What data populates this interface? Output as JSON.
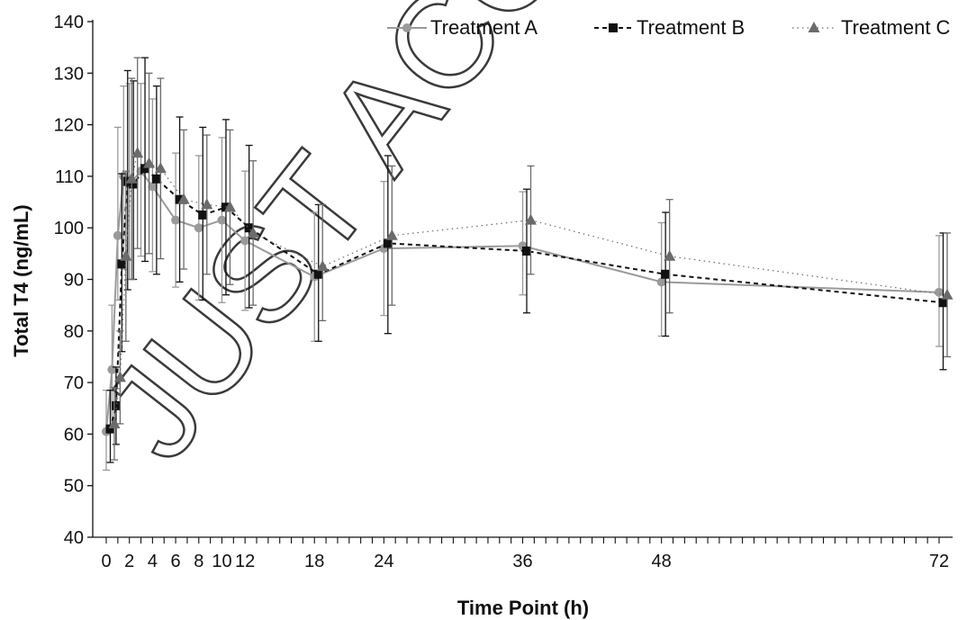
{
  "watermark": "JUST ACCEPTED",
  "chart_data": {
    "type": "line",
    "xlabel": "Time Point (h)",
    "ylabel": "Total T4 (ng/mL)",
    "xlim": [
      -1,
      73
    ],
    "ylim": [
      40,
      140
    ],
    "x_tick_values": [
      0,
      1,
      2,
      3,
      4,
      5,
      6,
      7,
      8,
      9,
      10,
      11,
      12,
      13,
      14,
      15,
      16,
      17,
      18,
      19,
      20,
      21,
      22,
      23,
      24,
      25,
      26,
      27,
      28,
      29,
      30,
      31,
      32,
      33,
      34,
      35,
      36,
      37,
      38,
      39,
      40,
      41,
      42,
      43,
      44,
      45,
      46,
      47,
      48,
      49,
      50,
      51,
      52,
      53,
      54,
      55,
      56,
      57,
      58,
      59,
      60,
      61,
      62,
      63,
      64,
      65,
      66,
      67,
      68,
      69,
      70,
      71,
      72
    ],
    "x_tick_labels": [
      "0",
      "2",
      "4",
      "6",
      "8",
      "10",
      "12",
      "18",
      "24",
      "36",
      "48",
      "72"
    ],
    "x_tick_label_values": [
      0,
      2,
      4,
      6,
      8,
      10,
      12,
      18,
      24,
      36,
      48,
      72
    ],
    "y_tick_labels": [
      "40",
      "50",
      "60",
      "70",
      "80",
      "90",
      "100",
      "110",
      "120",
      "130",
      "140"
    ],
    "y_ticks": [
      40,
      50,
      60,
      70,
      80,
      90,
      100,
      110,
      120,
      130,
      140
    ],
    "grid": false,
    "legend_position": "top-right",
    "series": [
      {
        "name": "Treatment A",
        "color": "#9a9a9a",
        "marker": "circle",
        "line_style": "solid",
        "x": [
          0,
          0.5,
          1,
          1.5,
          2,
          3,
          4,
          6,
          8,
          10,
          12,
          18,
          24,
          36,
          48,
          72
        ],
        "y": [
          60.5,
          72.5,
          98.5,
          110,
          108.5,
          111,
          108,
          101.5,
          100,
          101.5,
          97.5,
          90.5,
          96,
          96.5,
          89.5,
          87.5
        ],
        "yerr_low": [
          53,
          61.5,
          86,
          92,
          90,
          94.5,
          91.5,
          88.5,
          86,
          85.5,
          84,
          78,
          83,
          87,
          79,
          77
        ],
        "yerr_high": [
          68.5,
          85,
          119.5,
          127.5,
          128,
          128,
          125,
          114.5,
          114,
          117.5,
          111,
          103,
          109,
          107,
          101,
          98.5
        ]
      },
      {
        "name": "Treatment B",
        "color": "#111111",
        "marker": "square",
        "line_style": "dashed",
        "x": [
          0,
          0.5,
          1,
          1.5,
          2,
          3,
          4,
          6,
          8,
          10,
          12,
          18,
          24,
          36,
          48,
          72
        ],
        "y": [
          61,
          65.5,
          93,
          109,
          108.5,
          111.5,
          109.5,
          105.5,
          102.5,
          104,
          100,
          91,
          97,
          95.5,
          91,
          85.5
        ],
        "yerr_low": [
          54.5,
          58,
          76,
          88,
          90,
          93.5,
          91,
          89.5,
          86,
          87,
          84.5,
          78,
          79.5,
          83.5,
          79,
          72.5
        ],
        "yerr_high": [
          68.5,
          73,
          110.5,
          130.5,
          128.5,
          133,
          127.5,
          121.5,
          119.5,
          121,
          116,
          104.5,
          114,
          107.5,
          103,
          99
        ]
      },
      {
        "name": "Treatment C",
        "color": "#6b6b6b",
        "marker": "triangle",
        "line_style": "dotted",
        "x": [
          0,
          0.5,
          1,
          1.5,
          2,
          3,
          4,
          6,
          8,
          10,
          12,
          18,
          24,
          36,
          48,
          72
        ],
        "y": [
          62,
          71,
          94.5,
          109.5,
          114.5,
          112.5,
          111.5,
          105.5,
          104.5,
          104,
          99,
          92.5,
          98.5,
          101.5,
          94.5,
          87
        ],
        "yerr_low": [
          55,
          62,
          78,
          90,
          96,
          95,
          94,
          92,
          91,
          89,
          85,
          82,
          85,
          91,
          83.5,
          75
        ],
        "yerr_high": [
          69,
          80,
          111,
          129,
          133,
          130,
          129,
          119,
          118,
          119,
          113,
          104.5,
          112,
          112,
          105.5,
          99
        ]
      }
    ]
  }
}
